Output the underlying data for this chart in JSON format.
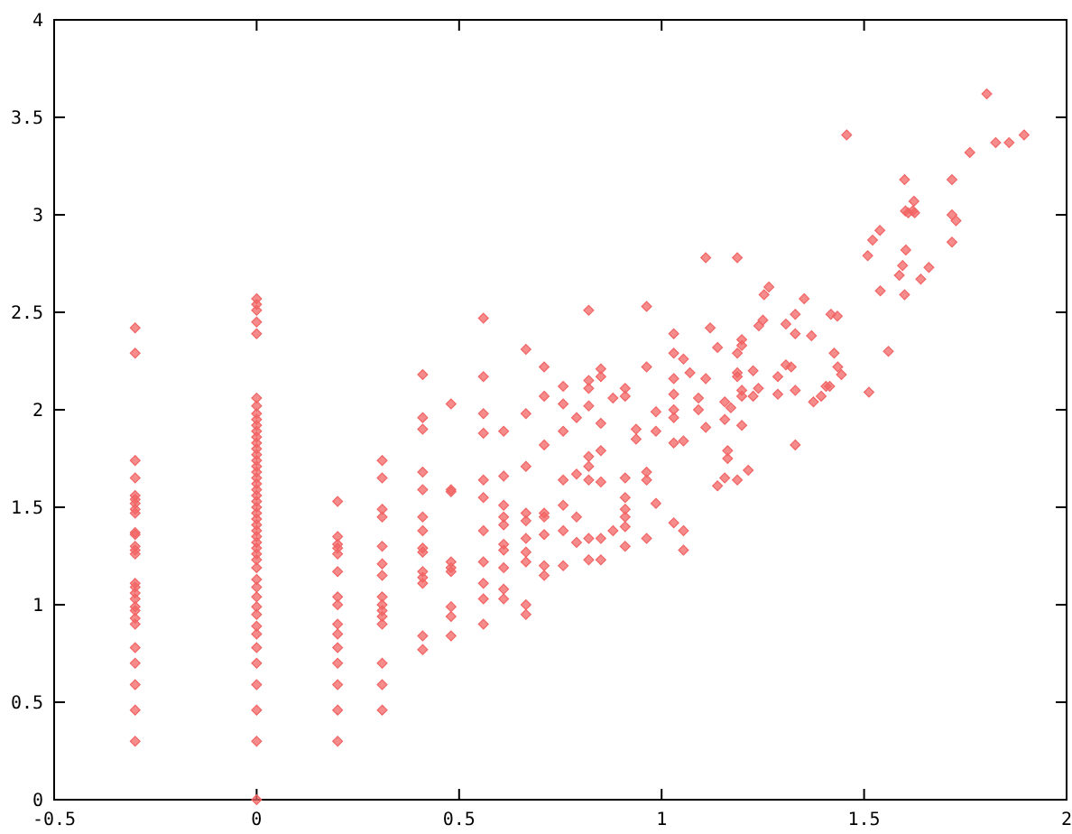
{
  "chart_data": {
    "type": "scatter",
    "marker": "diamond",
    "grid": false,
    "xlim": [
      -0.5,
      2
    ],
    "xticks": [
      -0.5,
      0,
      0.5,
      1,
      1.5,
      2
    ],
    "ylim": [
      0,
      4
    ],
    "yticks": [
      0,
      0.5,
      1,
      1.5,
      2,
      2.5,
      3,
      3.5,
      4
    ],
    "series": [
      {
        "color": "#f26464",
        "x": [
          -0.3,
          -0.3,
          -0.3,
          -0.3,
          -0.3,
          -0.3,
          -0.3,
          -0.3,
          -0.3,
          -0.3,
          -0.3,
          -0.3,
          -0.3,
          -0.3,
          -0.3,
          -0.3,
          -0.3,
          -0.3,
          -0.3,
          -0.3,
          -0.3,
          -0.3,
          -0.3,
          -0.3,
          -0.3,
          -0.3,
          -0.3,
          0,
          0,
          0,
          0,
          0,
          0,
          0,
          0,
          0,
          0,
          0,
          0,
          0,
          0,
          0,
          0,
          0,
          0,
          0,
          0,
          0,
          0,
          0,
          0,
          0,
          0,
          0,
          0,
          0,
          0,
          0,
          0,
          0,
          0,
          0,
          0,
          0,
          0,
          0,
          0,
          0,
          0,
          0,
          0,
          0,
          0,
          0,
          0.2,
          0.2,
          0.2,
          0.2,
          0.2,
          0.2,
          0.2,
          0.2,
          0.2,
          0.2,
          0.2,
          0.2,
          0.2,
          0.2,
          0.2,
          0.31,
          0.31,
          0.31,
          0.31,
          0.31,
          0.31,
          0.31,
          0.31,
          0.31,
          0.31,
          0.31,
          0.31,
          0.31,
          0.31,
          0.31,
          0.41,
          0.41,
          0.41,
          0.41,
          0.41,
          0.41,
          0.41,
          0.41,
          0.41,
          0.41,
          0.41,
          0.41,
          0.41,
          0.41,
          0.48,
          0.48,
          0.48,
          0.48,
          0.48,
          0.48,
          0.48,
          0.48,
          0.48,
          0.56,
          0.56,
          0.56,
          0.56,
          0.56,
          0.56,
          0.56,
          0.56,
          0.56,
          0.56,
          0.56,
          0.61,
          0.61,
          0.61,
          0.61,
          0.61,
          0.61,
          0.61,
          0.61,
          0.61,
          0.61,
          0.665,
          0.665,
          0.665,
          0.665,
          0.665,
          0.665,
          0.665,
          0.665,
          0.665,
          0.665,
          0.71,
          0.71,
          0.71,
          0.71,
          0.71,
          0.71,
          0.71,
          0.71,
          0.757,
          0.757,
          0.757,
          0.757,
          0.757,
          0.757,
          0.757,
          0.79,
          0.79,
          0.79,
          0.79,
          0.82,
          0.82,
          0.82,
          0.82,
          0.82,
          0.82,
          0.82,
          0.82,
          0.82,
          0.85,
          0.85,
          0.85,
          0.85,
          0.85,
          0.85,
          0.85,
          0.88,
          0.88,
          0.91,
          0.91,
          0.91,
          0.91,
          0.91,
          0.91,
          0.91,
          0.91,
          0.937,
          0.937,
          0.963,
          0.963,
          0.963,
          0.963,
          0.963,
          0.986,
          0.986,
          0.986,
          1.03,
          1.03,
          1.03,
          1.03,
          1.03,
          1.03,
          1.03,
          1.03,
          1.054,
          1.054,
          1.054,
          1.054,
          1.109,
          1.187,
          1.07,
          1.12,
          1.138,
          1.156,
          1.171,
          1.156,
          1.109,
          1.091,
          1.091,
          1.109,
          1.198,
          1.198,
          1.187,
          1.187,
          1.187,
          1.226,
          1.198,
          1.198,
          1.226,
          1.239,
          1.198,
          1.163,
          1.163,
          1.156,
          1.138,
          1.187,
          1.214,
          1.24,
          1.25,
          1.253,
          1.265,
          1.287,
          1.287,
          1.307,
          1.32,
          1.307,
          1.33,
          1.33,
          1.33,
          1.33,
          1.352,
          1.37,
          1.375,
          1.394,
          1.406,
          1.415,
          1.418,
          1.434,
          1.426,
          1.435,
          1.444,
          1.512,
          1.54,
          1.457,
          1.803,
          1.761,
          1.825,
          1.858,
          1.895,
          1.6,
          1.717,
          1.623,
          1.602,
          1.609,
          1.62,
          1.625,
          1.539,
          1.521,
          1.509,
          1.717,
          1.727,
          1.717,
          1.603,
          1.595,
          1.587,
          1.64,
          1.66,
          1.6,
          1.56
        ],
        "values": [
          2.42,
          2.29,
          1.74,
          1.65,
          1.56,
          1.54,
          1.52,
          1.49,
          1.47,
          1.37,
          1.36,
          1.3,
          1.28,
          1.26,
          1.11,
          1.09,
          1.06,
          1.03,
          0.99,
          0.97,
          0.93,
          0.9,
          0.78,
          0.7,
          0.59,
          0.46,
          0.3,
          2.57,
          2.54,
          2.51,
          2.45,
          2.39,
          2.06,
          2.02,
          1.98,
          1.95,
          1.92,
          1.89,
          1.86,
          1.83,
          1.8,
          1.77,
          1.74,
          1.71,
          1.68,
          1.65,
          1.62,
          1.59,
          1.56,
          1.53,
          1.5,
          1.47,
          1.44,
          1.41,
          1.38,
          1.35,
          1.32,
          1.29,
          1.26,
          1.23,
          1.19,
          1.13,
          1.09,
          1.04,
          0.99,
          0.95,
          0.89,
          0.85,
          0.78,
          0.7,
          0.59,
          0.46,
          0.3,
          0,
          1.53,
          1.35,
          1.31,
          1.29,
          1.26,
          1.17,
          1.04,
          1.0,
          0.9,
          0.85,
          0.78,
          0.7,
          0.59,
          0.46,
          0.3,
          1.74,
          1.65,
          1.49,
          1.45,
          1.3,
          1.21,
          1.15,
          1.04,
          1.0,
          0.97,
          0.94,
          0.9,
          0.7,
          0.59,
          0.46,
          2.18,
          1.96,
          1.9,
          1.68,
          1.59,
          1.45,
          1.38,
          1.29,
          1.27,
          1.17,
          1.14,
          1.11,
          0.84,
          0.77,
          2.03,
          1.59,
          1.58,
          1.22,
          1.19,
          1.17,
          0.99,
          0.94,
          0.84,
          2.47,
          2.17,
          1.98,
          1.88,
          1.64,
          1.55,
          1.38,
          1.22,
          1.11,
          1.03,
          0.9,
          1.89,
          1.66,
          1.51,
          1.45,
          1.41,
          1.31,
          1.28,
          1.19,
          1.08,
          1.03,
          2.31,
          1.98,
          1.71,
          1.47,
          1.43,
          1.34,
          1.27,
          1.22,
          1.0,
          0.95,
          2.22,
          2.07,
          1.82,
          1.47,
          1.45,
          1.36,
          1.2,
          1.15,
          2.12,
          2.03,
          1.89,
          1.64,
          1.51,
          1.38,
          1.2,
          1.96,
          1.67,
          1.45,
          1.32,
          2.51,
          2.15,
          2.11,
          2.02,
          1.76,
          1.71,
          1.64,
          1.34,
          1.23,
          2.21,
          2.17,
          1.93,
          1.79,
          1.63,
          1.34,
          1.23,
          2.06,
          1.38,
          2.11,
          2.07,
          1.65,
          1.55,
          1.49,
          1.45,
          1.4,
          1.3,
          1.9,
          1.85,
          2.53,
          2.22,
          1.68,
          1.64,
          1.34,
          1.99,
          1.89,
          1.52,
          2.39,
          2.29,
          2.16,
          2.08,
          2.0,
          1.83,
          1.96,
          1.42,
          2.26,
          1.84,
          1.38,
          1.28,
          2.78,
          2.78,
          2.19,
          2.42,
          2.32,
          2.04,
          2.01,
          1.95,
          2.16,
          2.06,
          2.0,
          1.91,
          2.36,
          2.33,
          2.29,
          2.19,
          2.17,
          2.2,
          2.1,
          2.07,
          2.07,
          2.11,
          1.92,
          1.79,
          1.75,
          1.65,
          1.61,
          1.64,
          1.69,
          2.43,
          2.46,
          2.59,
          2.63,
          2.17,
          2.08,
          2.23,
          2.22,
          2.44,
          2.49,
          2.39,
          2.1,
          1.82,
          2.57,
          2.38,
          2.04,
          2.07,
          2.12,
          2.12,
          2.49,
          2.48,
          2.29,
          2.22,
          2.18,
          2.09,
          2.61,
          3.41,
          3.62,
          3.32,
          3.37,
          3.37,
          3.41,
          3.18,
          3.18,
          3.07,
          3.02,
          3.01,
          3.02,
          3.01,
          2.92,
          2.87,
          2.79,
          3.0,
          2.97,
          2.86,
          2.82,
          2.74,
          2.69,
          2.67,
          2.73,
          2.59,
          2.3
        ]
      }
    ]
  }
}
